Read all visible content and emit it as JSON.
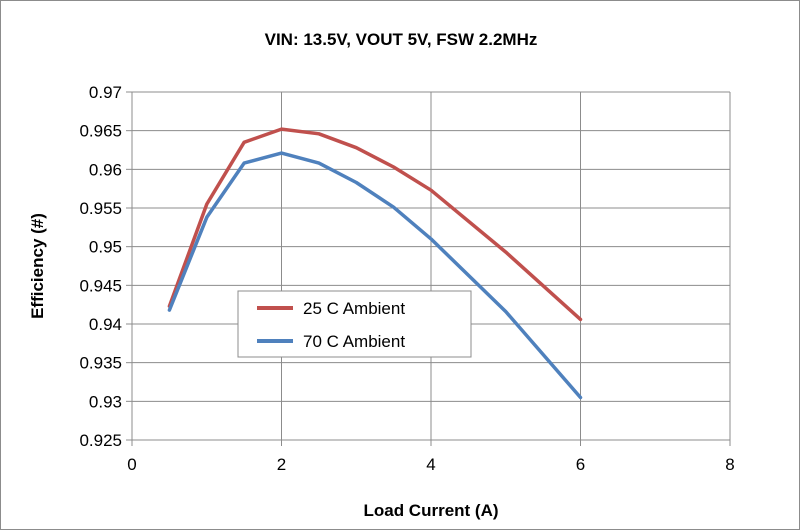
{
  "chart_data": {
    "type": "line",
    "title": "VIN: 13.5V, VOUT 5V, FSW 2.2MHz",
    "xlabel": "Load Current (A)",
    "ylabel": "Efficiency (#)",
    "xlim": [
      0,
      8
    ],
    "ylim": [
      0.925,
      0.97
    ],
    "x_ticks": [
      "0",
      "2",
      "4",
      "6",
      "8"
    ],
    "y_ticks": [
      "0.925",
      "0.93",
      "0.935",
      "0.94",
      "0.945",
      "0.95",
      "0.955",
      "0.96",
      "0.965",
      "0.97"
    ],
    "grid": true,
    "legend_position": "center-left",
    "series": [
      {
        "name": "25 C Ambient",
        "color": "#c0504d",
        "x": [
          0.5,
          1,
          1.5,
          2,
          2.5,
          3,
          3.5,
          4,
          5,
          6
        ],
        "y": [
          0.9423,
          0.9555,
          0.9635,
          0.9652,
          0.9646,
          0.9628,
          0.9603,
          0.9573,
          0.9493,
          0.9406
        ]
      },
      {
        "name": "70 C Ambient",
        "color": "#4f81bd",
        "x": [
          0.5,
          1,
          1.5,
          2,
          2.5,
          3,
          3.5,
          4,
          5,
          6
        ],
        "y": [
          0.9418,
          0.9538,
          0.9608,
          0.9621,
          0.9608,
          0.9583,
          0.9551,
          0.951,
          0.9416,
          0.9305
        ]
      }
    ]
  }
}
